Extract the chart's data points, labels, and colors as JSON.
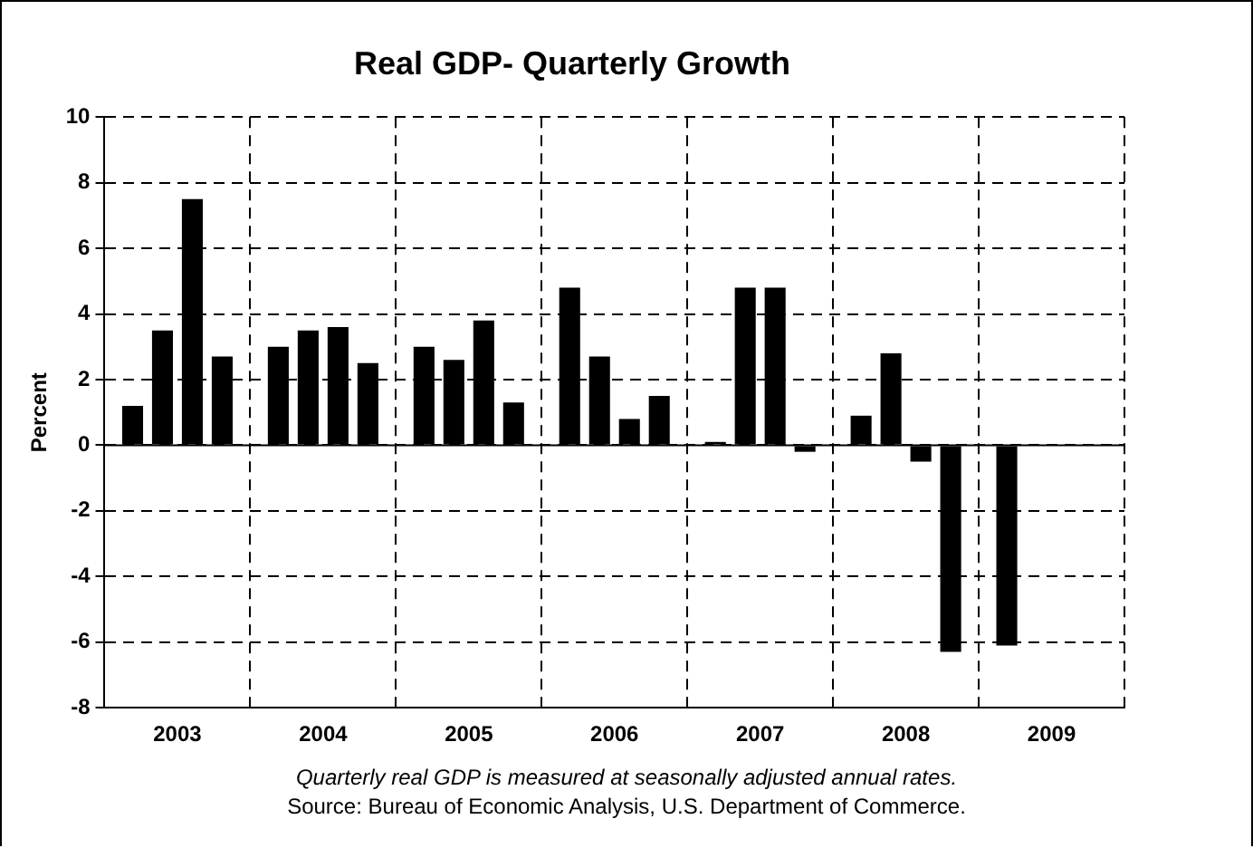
{
  "chart_data": {
    "type": "bar",
    "title": "Real GDP- Quarterly Growth",
    "ylabel": "Percent",
    "categories": [
      "2003",
      "2004",
      "2005",
      "2006",
      "2007",
      "2008",
      "2009"
    ],
    "series": [
      {
        "color": "#000000",
        "values": [
          1.2,
          3.0,
          3.0,
          4.8,
          0.1,
          0.9,
          -6.1
        ]
      },
      {
        "color": "#000000",
        "values": [
          3.5,
          3.5,
          2.6,
          2.7,
          4.8,
          2.8,
          null
        ]
      },
      {
        "color": "#000000",
        "values": [
          7.5,
          3.6,
          3.8,
          0.8,
          4.8,
          -0.5,
          null
        ]
      },
      {
        "color": "#000000",
        "values": [
          2.7,
          2.5,
          1.3,
          1.5,
          -0.2,
          -6.3,
          null
        ]
      }
    ],
    "ylim": [
      -8,
      10
    ],
    "yticks": [
      -8,
      -6,
      -4,
      -2,
      0,
      2,
      4,
      6,
      8,
      10
    ],
    "grid": true,
    "legend": false,
    "ref_lines": [
      {
        "axis": "y",
        "value": 0,
        "color": "#000000"
      }
    ],
    "annotations": [
      "Quarterly real GDP is measured at seasonally adjusted annual rates.",
      "Source: Bureau of Economic Analysis, U.S. Department of Commerce."
    ]
  }
}
